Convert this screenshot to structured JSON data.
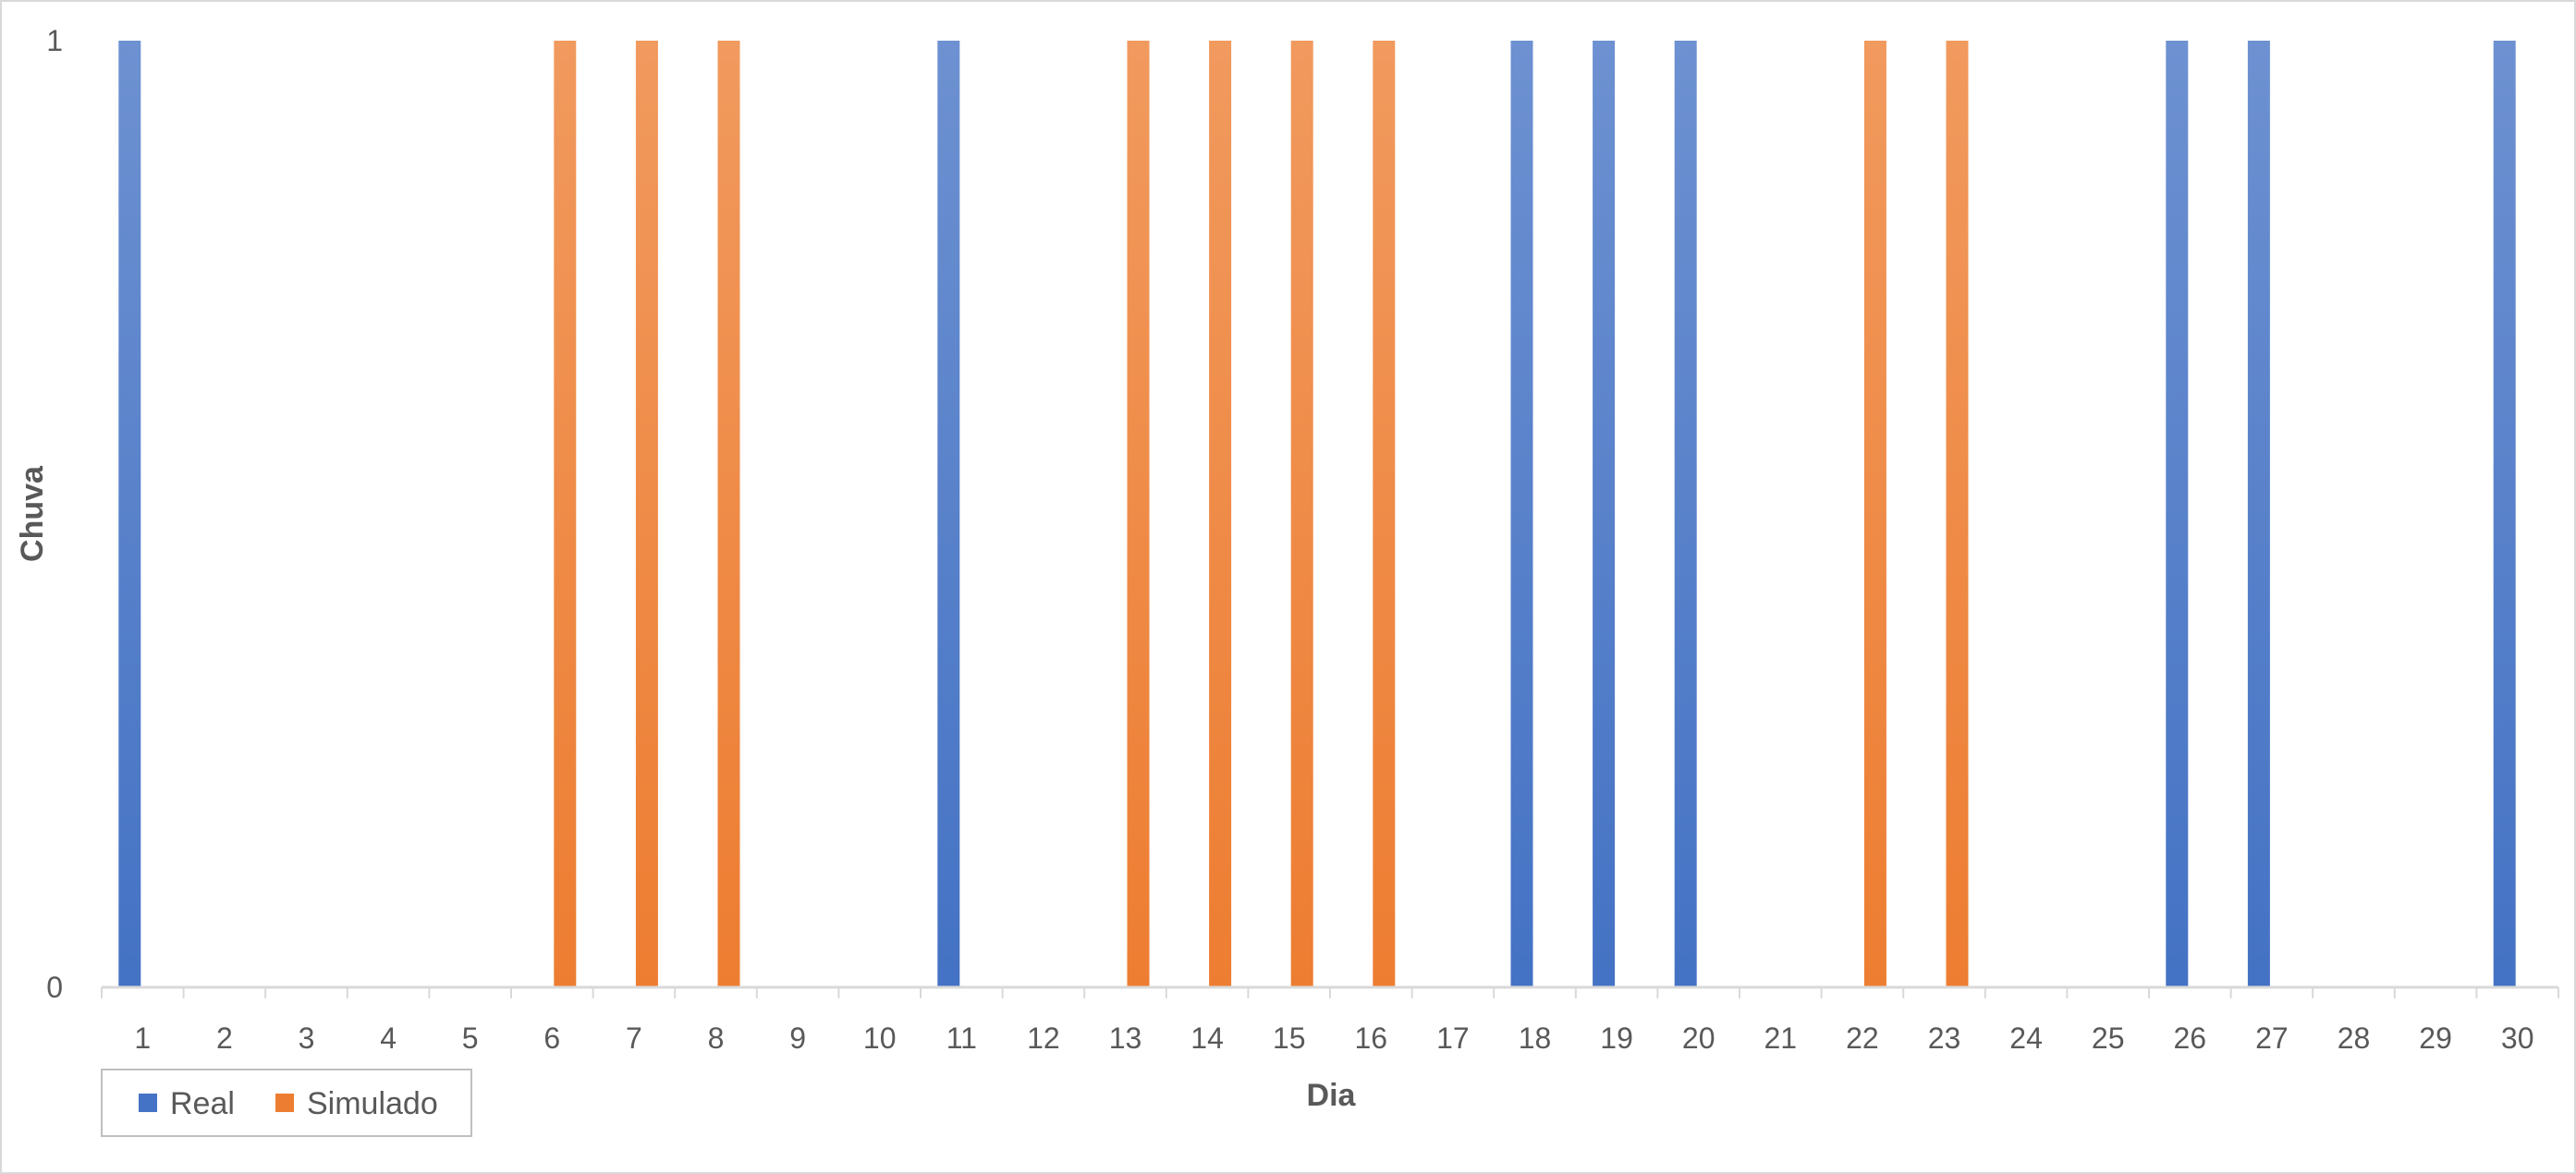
{
  "chart_data": {
    "type": "bar",
    "categories": [
      "1",
      "2",
      "3",
      "4",
      "5",
      "6",
      "7",
      "8",
      "9",
      "10",
      "11",
      "12",
      "13",
      "14",
      "15",
      "16",
      "17",
      "18",
      "19",
      "20",
      "21",
      "22",
      "23",
      "24",
      "25",
      "26",
      "27",
      "28",
      "29",
      "30"
    ],
    "series": [
      {
        "name": "Real",
        "color": "#4472c4",
        "values": [
          1,
          0,
          0,
          0,
          0,
          0,
          0,
          0,
          0,
          0,
          1,
          0,
          0,
          0,
          0,
          0,
          0,
          1,
          1,
          1,
          0,
          0,
          0,
          0,
          0,
          1,
          1,
          0,
          0,
          1
        ]
      },
      {
        "name": "Simulado",
        "color": "#ed7d31",
        "values": [
          0,
          0,
          0,
          0,
          0,
          1,
          1,
          1,
          0,
          0,
          0,
          0,
          1,
          1,
          1,
          1,
          0,
          0,
          0,
          0,
          0,
          1,
          1,
          0,
          0,
          0,
          0,
          0,
          0,
          0
        ]
      }
    ],
    "title": "",
    "xlabel": "Dia",
    "ylabel": "Chuva",
    "ylim": [
      0,
      1
    ],
    "yticks": [
      "0",
      "1"
    ],
    "grid": false,
    "legend_position": "bottom-left"
  }
}
